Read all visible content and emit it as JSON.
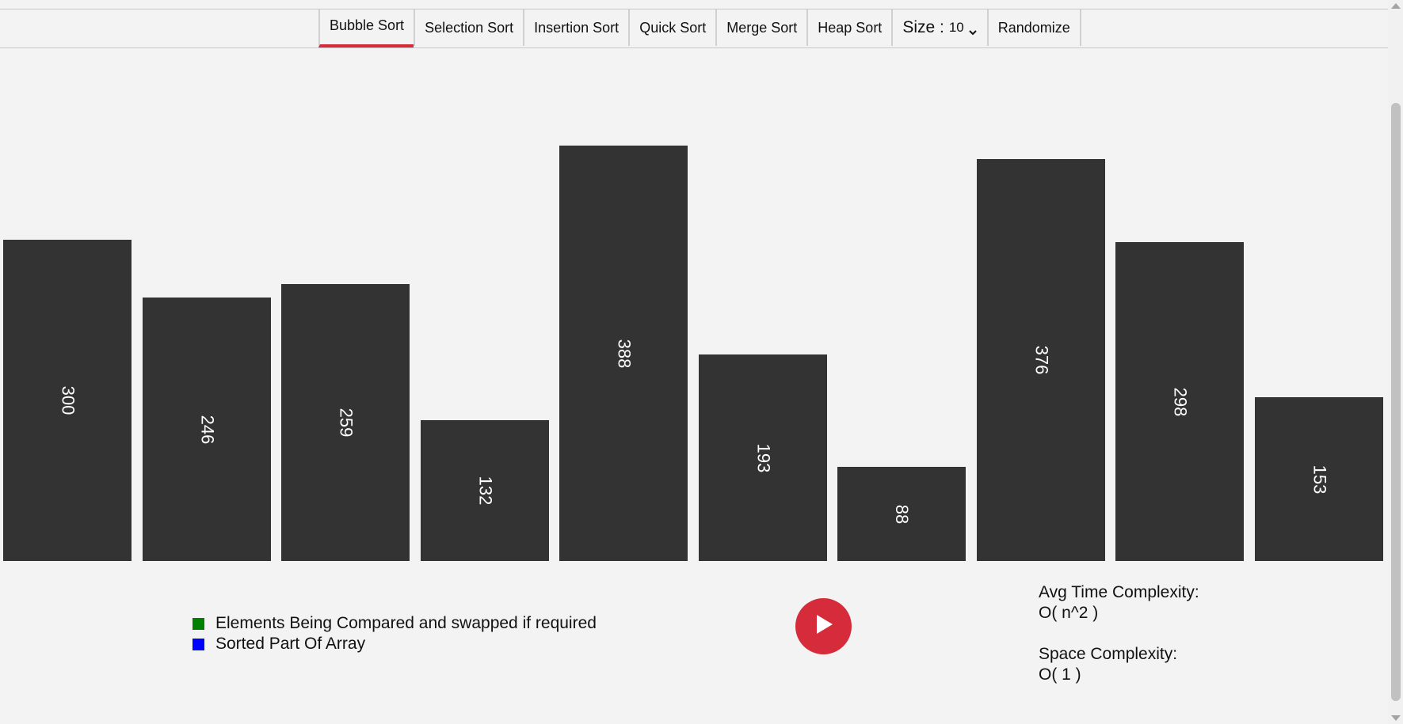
{
  "nav": {
    "tabs": [
      {
        "label": "Bubble Sort",
        "active": true
      },
      {
        "label": "Selection Sort",
        "active": false
      },
      {
        "label": "Insertion Sort",
        "active": false
      },
      {
        "label": "Quick Sort",
        "active": false
      },
      {
        "label": "Merge Sort",
        "active": false
      },
      {
        "label": "Heap Sort",
        "active": false
      }
    ],
    "size_label": "Size :",
    "size_value": "10",
    "randomize_label": "Randomize",
    "accent_color": "#d52b3a"
  },
  "array": {
    "values": [
      300,
      246,
      259,
      132,
      388,
      193,
      88,
      376,
      298,
      153
    ],
    "bar_color": "#333333",
    "label_color": "#ffffff"
  },
  "legend": {
    "compared": {
      "label": "Elements Being Compared and swapped if required",
      "color": "#008000"
    },
    "sorted": {
      "label": "Sorted Part Of Array",
      "color": "#0000ff"
    }
  },
  "play_button": {
    "icon": "play-icon",
    "color": "#d52b3a"
  },
  "complexity": {
    "time_title": "Avg Time Complexity:",
    "time_value": "O( n^2 )",
    "space_title": "Space Complexity:",
    "space_value": "O( 1 )"
  }
}
